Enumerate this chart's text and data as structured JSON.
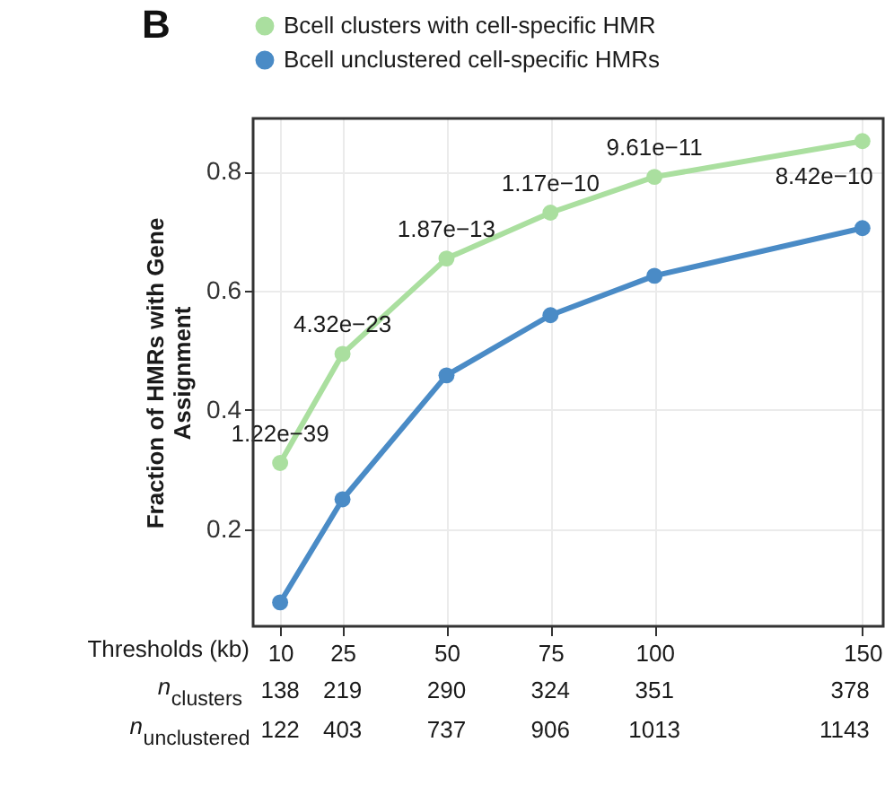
{
  "chart_data": {
    "type": "line",
    "title": "B",
    "xlabel": "Thresholds (kb)",
    "ylabel": "Fraction of HMRs with Gene Assignment",
    "x": [
      10,
      25,
      50,
      75,
      100,
      150
    ],
    "series": [
      {
        "name": "Bcell clusters with cell-specific HMR",
        "color": "#aadf9f",
        "values": [
          0.311,
          0.494,
          0.654,
          0.731,
          0.791,
          0.851
        ]
      },
      {
        "name": "Bcell unclustered cell-specific HMRs",
        "color": "#4a8bc6",
        "values": [
          0.077,
          0.25,
          0.458,
          0.559,
          0.625,
          0.705
        ]
      }
    ],
    "xlim": [
      3.5,
      155
    ],
    "xticks": [
      10,
      25,
      50,
      75,
      100,
      150
    ],
    "ylim": [
      0.037,
      0.889
    ],
    "yticks": [
      0.2,
      0.4,
      0.6,
      0.8
    ],
    "grid": true,
    "legend": "top left",
    "marker": "circle",
    "line_style": "solid",
    "annotations": [
      {
        "text": "1.22e−39",
        "x": 10,
        "y": 0.311
      },
      {
        "text": "4.32e−23",
        "x": 25,
        "y": 0.494
      },
      {
        "text": "1.87e−13",
        "x": 50,
        "y": 0.654
      },
      {
        "text": "1.17e−10",
        "x": 75,
        "y": 0.731
      },
      {
        "text": "9.61e−11",
        "x": 100,
        "y": 0.791
      },
      {
        "text": "8.42e−10",
        "x": 150,
        "y": 0.851
      },
      "n$_{clusters}$",
      "138",
      "219",
      "290",
      "324",
      "351",
      "378",
      "n$_{unclustered}$",
      "122",
      "403",
      "737",
      "906",
      "1013",
      "1143"
    ]
  }
}
